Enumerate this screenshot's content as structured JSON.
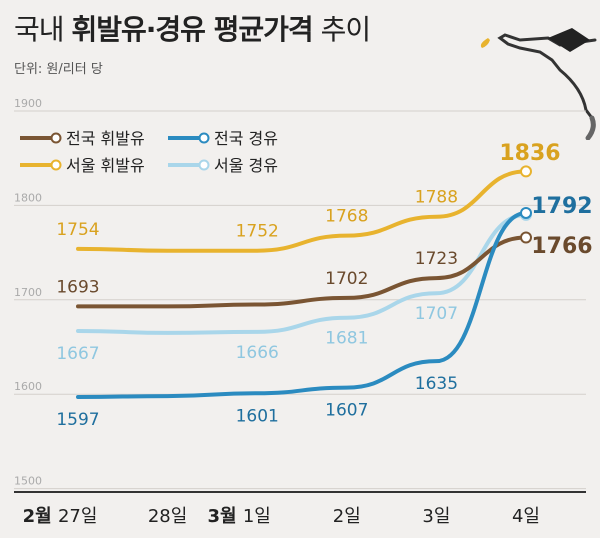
{
  "title_parts": [
    "국내",
    "휘발유·경유 평균가격",
    "추이"
  ],
  "unit": "단위: 원/리터 당",
  "icons": {
    "pump": "fuel-pump-nozzle-icon"
  },
  "chart_data": {
    "type": "line",
    "title": "국내 휘발유·경유 평균가격 추이",
    "xlabel": "",
    "ylabel": "",
    "ylim": [
      1500,
      1900
    ],
    "yticks": [
      "1500",
      "1600",
      "1700",
      "1800",
      "1900"
    ],
    "grid": true,
    "legend": "top-left",
    "x": [
      "2월 27일",
      "28일",
      "3월 1일",
      "2일",
      "3일",
      "4일"
    ],
    "x_tick_labels": [
      {
        "month": "2월",
        "day": "27일"
      },
      {
        "month": "",
        "day": "28일"
      },
      {
        "month": "3월",
        "day": "1일"
      },
      {
        "month": "",
        "day": "2일"
      },
      {
        "month": "",
        "day": "3일"
      },
      {
        "month": "",
        "day": "4일"
      }
    ],
    "series": [
      {
        "name": "전국 휘발유",
        "color": "#7a5533",
        "values": [
          1693,
          1693,
          1695,
          1702,
          1723,
          1766
        ],
        "labels": [
          "1693",
          "",
          "",
          "1702",
          "1723",
          "1766"
        ]
      },
      {
        "name": "서울 휘발유",
        "color": "#e8b32e",
        "values": [
          1754,
          1752,
          1752,
          1768,
          1788,
          1836
        ],
        "labels": [
          "1754",
          "",
          "1752",
          "1768",
          "1788",
          "1836"
        ]
      },
      {
        "name": "전국 경유",
        "color": "#2b8bc0",
        "values": [
          1597,
          1598,
          1601,
          1607,
          1635,
          1792
        ],
        "labels": [
          "1597",
          "",
          "1601",
          "1607",
          "1635",
          "1792"
        ]
      },
      {
        "name": "서울 경유",
        "color": "#a9d6ea",
        "values": [
          1667,
          1665,
          1666,
          1681,
          1707,
          1790
        ],
        "labels": [
          "1667",
          "",
          "1666",
          "1681",
          "1707",
          ""
        ]
      }
    ]
  }
}
